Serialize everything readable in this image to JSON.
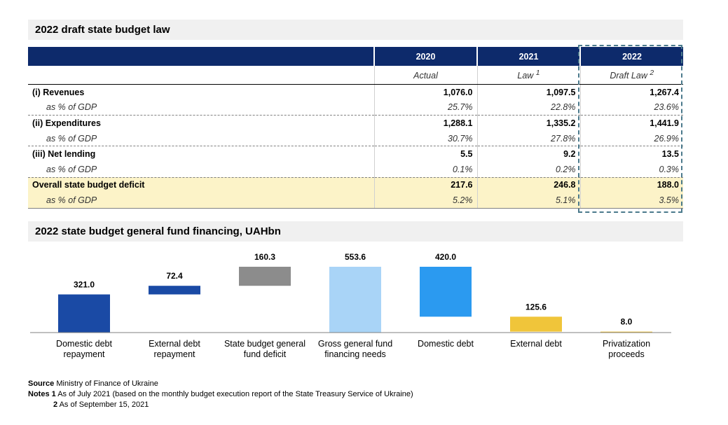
{
  "table": {
    "title": "2022 draft state budget law",
    "years": [
      "2020",
      "2021",
      "2022"
    ],
    "subheaders": [
      {
        "text": "Actual",
        "sup": ""
      },
      {
        "text": "Law ",
        "sup": "1"
      },
      {
        "text": "Draft Law ",
        "sup": "2"
      }
    ],
    "rows": [
      {
        "label": "(i) Revenues",
        "values": [
          "1,076.0",
          "1,097.5",
          "1,267.4"
        ],
        "pct_label": "as % of GDP",
        "pct": [
          "25.7%",
          "22.8%",
          "23.6%"
        ],
        "highlight": false
      },
      {
        "label": "(ii) Expenditures",
        "values": [
          "1,288.1",
          "1,335.2",
          "1,441.9"
        ],
        "pct_label": "as % of GDP",
        "pct": [
          "30.7%",
          "27.8%",
          "26.9%"
        ],
        "highlight": false
      },
      {
        "label": "(iii) Net lending",
        "values": [
          "5.5",
          "9.2",
          "13.5"
        ],
        "pct_label": "as % of GDP",
        "pct": [
          "0.1%",
          "0.2%",
          "0.3%"
        ],
        "highlight": false
      },
      {
        "label": "Overall state budget deficit",
        "values": [
          "217.6",
          "246.8",
          "188.0"
        ],
        "pct_label": "as % of GDP",
        "pct": [
          "5.2%",
          "5.1%",
          "3.5%"
        ],
        "highlight": true
      }
    ],
    "highlight_color": "#fcf3c8",
    "header_color": "#0d2a6b"
  },
  "chart_data": {
    "type": "bar",
    "title": "2022 state budget general fund financing, UAHbn",
    "subtype": "waterfall",
    "ylim": [
      0,
      560
    ],
    "categories": [
      "Domestic debt\nrepayment",
      "External debt\nrepayment",
      "State budget general\nfund deficit",
      "Gross general fund\nfinancing needs",
      "Domestic debt",
      "External debt",
      "Privatization\nproceeds"
    ],
    "values": [
      321.0,
      72.4,
      160.3,
      553.6,
      420.0,
      125.6,
      8.0
    ],
    "value_labels": [
      "321.0",
      "72.4",
      "160.3",
      "553.6",
      "420.0",
      "125.6",
      "8.0"
    ],
    "bases": [
      0,
      321.0,
      393.4,
      0,
      133.6,
      8.0,
      0
    ],
    "colors": [
      "#1a4aa5",
      "#1a4aa5",
      "#8c8c8c",
      "#a9d4f7",
      "#2b9af0",
      "#f0c53a",
      "#f0c53a"
    ],
    "xlabel": "",
    "ylabel": ""
  },
  "footer": {
    "source_label": "Source",
    "source_text": " Ministry of Finance of Ukraine",
    "notes_label": "Notes",
    "note1_num": "1",
    "note1_text": " As of July 2021 (based on the monthly budget execution report of the State Treasury Service of Ukraine)",
    "note2_num": "2",
    "note2_text": " As of September 15, 2021"
  }
}
